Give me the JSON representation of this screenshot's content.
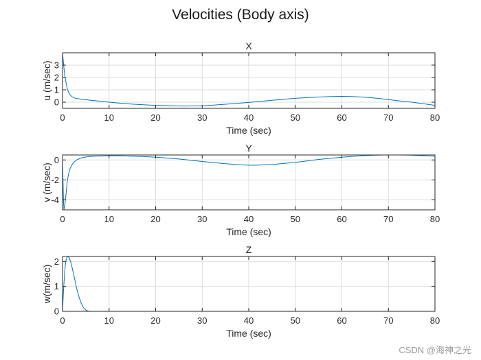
{
  "figure": {
    "title": "Velocities (Body axis)",
    "watermark": "CSDN @海神之光"
  },
  "colors": {
    "line": "#0072BD",
    "grid": "#dcdcdc",
    "axis": "#262626"
  },
  "chart_data": [
    {
      "type": "line",
      "title": "X",
      "xlabel": "Time (sec)",
      "ylabel": "u (m/sec)",
      "xlim": [
        0,
        80
      ],
      "ylim": [
        -0.5,
        4
      ],
      "xticks": [
        0,
        10,
        20,
        30,
        40,
        50,
        60,
        70,
        80
      ],
      "yticks": [
        0,
        1,
        2,
        3
      ],
      "grid": true,
      "series": [
        {
          "x": [
            0,
            0.1,
            0.2,
            0.35,
            0.5,
            0.8,
            1.0,
            1.3,
            1.6,
            2.0,
            2.5,
            3.0,
            4,
            5,
            6,
            8,
            10,
            12,
            15,
            18,
            20,
            22,
            24,
            26,
            28,
            30,
            32,
            35,
            38,
            40,
            42,
            45,
            48,
            50,
            52,
            55,
            58,
            60,
            62,
            65,
            68,
            70,
            72,
            75,
            78,
            80
          ],
          "y": [
            4.0,
            3.6,
            3.2,
            2.6,
            2.1,
            1.5,
            1.1,
            0.8,
            0.6,
            0.45,
            0.35,
            0.3,
            0.25,
            0.2,
            0.15,
            0.08,
            0.0,
            -0.07,
            -0.16,
            -0.22,
            -0.26,
            -0.28,
            -0.3,
            -0.31,
            -0.3,
            -0.29,
            -0.25,
            -0.17,
            -0.08,
            -0.02,
            0.05,
            0.15,
            0.25,
            0.31,
            0.36,
            0.42,
            0.46,
            0.47,
            0.46,
            0.4,
            0.3,
            0.21,
            0.12,
            0.0,
            -0.15,
            -0.26
          ]
        }
      ]
    },
    {
      "type": "line",
      "title": "Y",
      "xlabel": "Time (sec)",
      "ylabel": "v (m/sec)",
      "xlim": [
        0,
        80
      ],
      "ylim": [
        -5,
        0.5
      ],
      "xticks": [
        0,
        10,
        20,
        30,
        40,
        50,
        60,
        70,
        80
      ],
      "yticks": [
        0,
        -2,
        -4
      ],
      "grid": true,
      "series": [
        {
          "x": [
            0,
            0.1,
            0.2,
            0.3,
            0.5,
            0.8,
            1.0,
            1.3,
            1.6,
            2.0,
            2.5,
            3.0,
            4,
            5,
            6,
            8,
            10,
            12,
            15,
            18,
            20,
            25,
            30,
            35,
            38,
            40,
            42,
            45,
            50,
            55,
            60,
            65,
            70,
            75,
            80
          ],
          "y": [
            0,
            -2.0,
            -4.0,
            -5.0,
            -4.5,
            -3.2,
            -2.2,
            -1.4,
            -0.9,
            -0.5,
            -0.2,
            0.0,
            0.2,
            0.3,
            0.35,
            0.4,
            0.42,
            0.42,
            0.38,
            0.33,
            0.28,
            0.1,
            -0.15,
            -0.38,
            -0.48,
            -0.52,
            -0.52,
            -0.45,
            -0.25,
            0.05,
            0.28,
            0.45,
            0.52,
            0.48,
            0.38
          ]
        }
      ]
    },
    {
      "type": "line",
      "title": "Z",
      "xlabel": "Time (sec)",
      "ylabel": "w(m/sec)",
      "xlim": [
        0,
        80
      ],
      "ylim": [
        0,
        2.2
      ],
      "xticks": [
        0,
        10,
        20,
        30,
        40,
        50,
        60,
        70,
        80
      ],
      "yticks": [
        0,
        1,
        2
      ],
      "grid": true,
      "series": [
        {
          "x": [
            0,
            0.2,
            0.4,
            0.6,
            0.8,
            1.0,
            1.2,
            1.5,
            1.8,
            2.0,
            2.3,
            2.6,
            3.0,
            3.5,
            4.0,
            4.5,
            5.0,
            5.5,
            6.0,
            8,
            10,
            20,
            30,
            40,
            50,
            60,
            70,
            80
          ],
          "y": [
            0,
            0.8,
            1.4,
            1.85,
            2.08,
            2.18,
            2.2,
            2.12,
            1.95,
            1.8,
            1.55,
            1.3,
            0.95,
            0.6,
            0.33,
            0.15,
            0.05,
            0.01,
            0,
            0,
            0,
            0,
            0,
            0,
            0,
            0,
            0,
            0
          ]
        }
      ]
    }
  ]
}
